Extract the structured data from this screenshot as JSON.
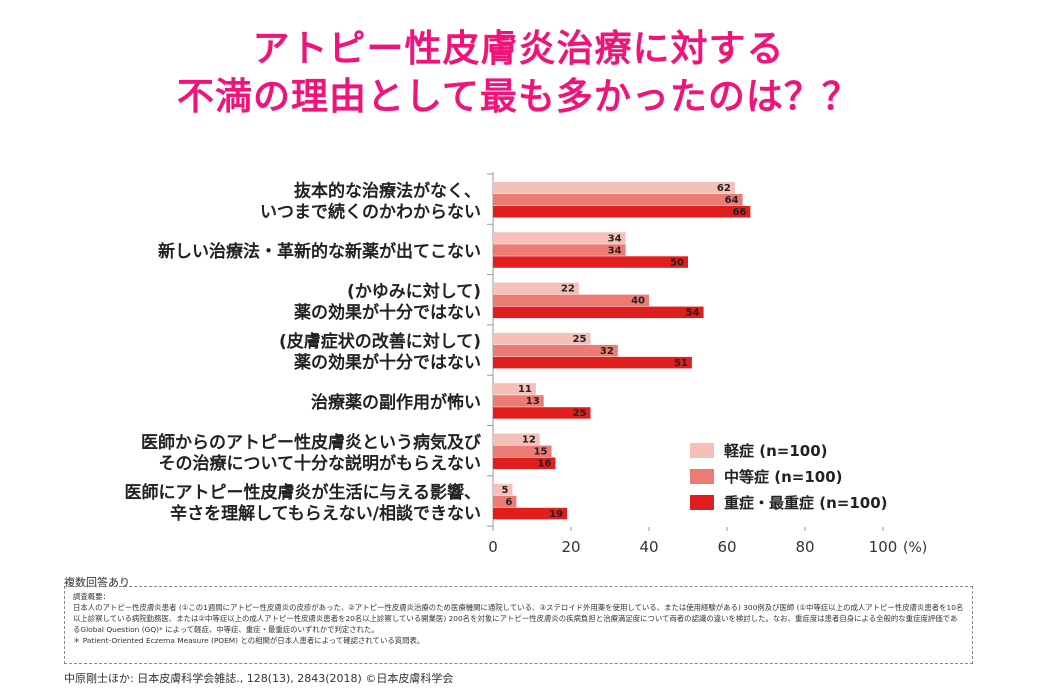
{
  "title_line1": "アトピー性皮膚炎治療に対する",
  "title_line2": "不満の理由として最も多かったのは？？",
  "chart_data": {
    "type": "bar",
    "orientation": "horizontal",
    "categories": [
      [
        "抜本的な治療法がなく、",
        "いつまで続くのかわからない"
      ],
      [
        "新しい治療法・革新的な新薬が出てこない"
      ],
      [
        "(かゆみに対して)",
        "薬の効果が十分ではない"
      ],
      [
        "(皮膚症状の改善に対して)",
        "薬の効果が十分ではない"
      ],
      [
        "治療薬の副作用が怖い"
      ],
      [
        "医師からのアトピー性皮膚炎という病気及び",
        "その治療について十分な説明がもらえない"
      ],
      [
        "医師にアトピー性皮膚炎が生活に与える影響、",
        "辛さを理解してもらえない/相談できない"
      ]
    ],
    "series": [
      {
        "name": "軽症 (n=100)",
        "color": "#f5c0b8",
        "values": [
          62,
          34,
          22,
          25,
          11,
          12,
          5
        ]
      },
      {
        "name": "中等症 (n=100)",
        "color": "#ec7b74",
        "values": [
          64,
          34,
          40,
          32,
          13,
          15,
          6
        ]
      },
      {
        "name": "重症・最重症 (n=100)",
        "color": "#e01e1e",
        "values": [
          66,
          50,
          54,
          51,
          25,
          16,
          19
        ]
      }
    ],
    "xlim": [
      0,
      100
    ],
    "xticks": [
      "0",
      "20",
      "40",
      "60",
      "80",
      "100"
    ],
    "xunit": "(%)",
    "legend_position": "right"
  },
  "note_label": "複数回答あり",
  "note_title": "調査概要：",
  "note_body": "日本人のアトピー性皮膚炎患者 (①この1週間にアトピー性皮膚炎の皮疹があった、②アトピー性皮膚炎治療のため医療機関に通院している、③ステロイド外用薬を使用している、または使用経験がある) 300例及び医師 (①中等症以上の成人アトピー性皮膚炎患者を10名以上診察している病院勤務医、または②中等症以上の成人アトピー性皮膚炎患者を20名以上診察している開業医) 200名を対象にアトピー性皮膚炎の疾病負担と治療満足度について両者の認識の違いを検討した。なお、重症度は患者自身による全般的な重症度評価であるGlobal Question (GQ)* によって軽症、中等症、重症・最重症のいずれかで判定された。",
  "note_footnote": "＊ Patient-Oriented Eczema Measure (POEM) との相関が日本人患者によって確認されている質問表。",
  "source": "中原剛士ほか: 日本皮膚科学会雑誌., 128(13), 2843(2018) ©日本皮膚科学会"
}
